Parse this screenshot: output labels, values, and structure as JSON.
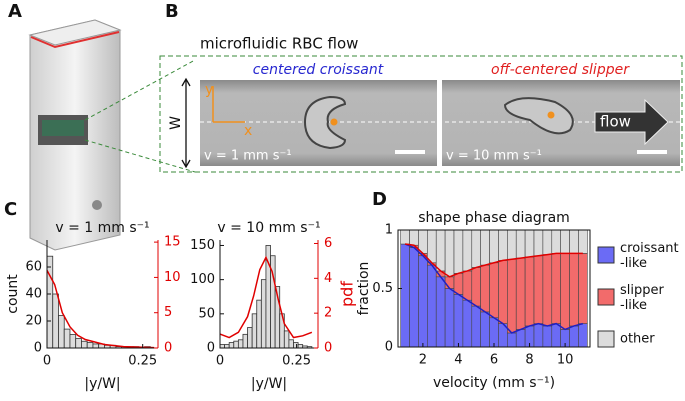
{
  "figure": {
    "panel_labels": [
      "A",
      "B",
      "C",
      "D"
    ],
    "b_title": "microfluidic RBC flow",
    "b_left_label": "centered croissant",
    "b_right_label": "off-centered slipper",
    "b_width_label": "W",
    "b_y_axis": "y",
    "b_x_axis": "x",
    "b_left_velocity": "v = 1 mm s⁻¹",
    "b_right_velocity": "v = 10 mm s⁻¹",
    "b_flow": "flow"
  },
  "chart_data": [
    {
      "type": "histogram",
      "title": "v = 1 mm s⁻¹",
      "xlabel": "|y/W|",
      "ylabel": "count",
      "bins": [
        0,
        0.015,
        0.03,
        0.045,
        0.06,
        0.075,
        0.09,
        0.105,
        0.12,
        0.135,
        0.15,
        0.165,
        0.18,
        0.195,
        0.21,
        0.225,
        0.24,
        0.255,
        0.27
      ],
      "values": [
        68,
        40,
        24,
        14,
        10,
        7,
        5,
        4,
        3,
        3,
        2,
        2,
        1,
        1,
        1,
        1,
        0,
        1
      ],
      "color": "#dcdcdc",
      "pdf_curve": {
        "x": [
          0,
          0.02,
          0.04,
          0.06,
          0.08,
          0.1,
          0.15,
          0.2,
          0.25,
          0.28
        ],
        "values": [
          11,
          9,
          5,
          3,
          1.8,
          1.2,
          0.5,
          0.2,
          0.1,
          0.05
        ],
        "color": "#e00000",
        "axis": "y2"
      },
      "xlim": [
        0,
        0.29
      ],
      "xticks": [
        0,
        0.25
      ],
      "ylim": [
        0,
        80
      ],
      "yticks": [
        0,
        20,
        40,
        60
      ],
      "y2lim": [
        0,
        15.3
      ],
      "y2ticks": [
        0,
        5,
        10,
        15
      ]
    },
    {
      "type": "histogram",
      "title": "v = 10 mm s⁻¹",
      "xlabel": "|y/W|",
      "y2label": "pdf",
      "bins": [
        0,
        0.015,
        0.03,
        0.045,
        0.06,
        0.075,
        0.09,
        0.105,
        0.12,
        0.135,
        0.15,
        0.165,
        0.18,
        0.195,
        0.21,
        0.225,
        0.24,
        0.255,
        0.27,
        0.285,
        0.3
      ],
      "values": [
        5,
        5,
        8,
        10,
        12,
        20,
        30,
        50,
        70,
        100,
        150,
        135,
        90,
        50,
        25,
        12,
        8,
        5,
        3,
        2
      ],
      "color": "#dcdcdc",
      "pdf_curve": {
        "x": [
          0,
          0.03,
          0.06,
          0.09,
          0.11,
          0.13,
          0.15,
          0.17,
          0.19,
          0.21,
          0.24,
          0.27,
          0.3
        ],
        "values": [
          0.8,
          0.6,
          0.9,
          1.8,
          3,
          4.5,
          5.2,
          4.4,
          2.8,
          1.4,
          0.6,
          0.7,
          0.9
        ],
        "color": "#e00000",
        "axis": "y2"
      },
      "xlim": [
        0,
        0.32
      ],
      "xticks": [
        0,
        0.25
      ],
      "ylim": [
        0,
        158
      ],
      "yticks": [
        0,
        50,
        100,
        150
      ],
      "y2lim": [
        0,
        6.2
      ],
      "y2ticks": [
        0,
        2,
        4,
        6
      ]
    },
    {
      "type": "stacked_bar",
      "title": "shape phase diagram",
      "xlabel": "velocity (mm s⁻¹)",
      "ylabel": "fraction",
      "x": [
        1,
        1.5,
        2,
        2.5,
        3,
        3.5,
        4,
        4.5,
        5,
        5.5,
        6,
        6.5,
        7,
        7.5,
        8,
        8.5,
        9,
        9.5,
        10,
        10.5,
        11
      ],
      "series": [
        {
          "name": "croissant\n-like",
          "color": "#6b6bf5",
          "values": [
            0.88,
            0.85,
            0.78,
            0.7,
            0.6,
            0.5,
            0.45,
            0.4,
            0.35,
            0.3,
            0.25,
            0.2,
            0.12,
            0.15,
            0.18,
            0.2,
            0.18,
            0.2,
            0.15,
            0.18,
            0.2
          ]
        },
        {
          "name": "slipper\n-like",
          "color": "#f26b6b",
          "values": [
            0,
            0.02,
            0.02,
            0.02,
            0.05,
            0.1,
            0.18,
            0.25,
            0.33,
            0.4,
            0.47,
            0.54,
            0.63,
            0.61,
            0.59,
            0.58,
            0.61,
            0.6,
            0.65,
            0.62,
            0.6
          ]
        },
        {
          "name": "other",
          "color": "#dcdcdc",
          "values": [
            0.12,
            0.13,
            0.2,
            0.28,
            0.35,
            0.4,
            0.37,
            0.35,
            0.32,
            0.3,
            0.28,
            0.26,
            0.25,
            0.24,
            0.23,
            0.22,
            0.21,
            0.2,
            0.2,
            0.2,
            0.2
          ]
        }
      ],
      "line_colors": [
        "#2020c0",
        "#e00000"
      ],
      "xlim": [
        0.6,
        11.4
      ],
      "xticks": [
        2,
        4,
        6,
        8,
        10
      ],
      "ylim": [
        0,
        1
      ],
      "yticks": [
        0,
        0.5,
        1
      ],
      "legend": "right"
    }
  ]
}
